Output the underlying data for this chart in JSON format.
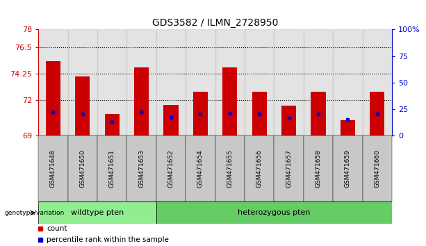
{
  "title": "GDS3582 / ILMN_2728950",
  "samples": [
    "GSM471648",
    "GSM471650",
    "GSM471651",
    "GSM471653",
    "GSM471652",
    "GSM471654",
    "GSM471655",
    "GSM471656",
    "GSM471657",
    "GSM471658",
    "GSM471659",
    "GSM471660"
  ],
  "counts": [
    75.3,
    74.0,
    70.8,
    74.8,
    71.6,
    72.7,
    74.8,
    72.7,
    71.5,
    72.7,
    70.3,
    72.7
  ],
  "percentile_ranks": [
    22,
    20,
    13,
    22,
    17,
    20,
    21,
    20,
    16,
    20,
    15,
    20
  ],
  "ymin": 69,
  "ymax": 78,
  "yticks": [
    69,
    72,
    74.25,
    76.5,
    78
  ],
  "ytick_labels": [
    "69",
    "72",
    "74.25",
    "76.5",
    "78"
  ],
  "y2min": 0,
  "y2max": 100,
  "y2ticks": [
    0,
    25,
    50,
    75,
    100
  ],
  "y2tick_labels": [
    "0",
    "25",
    "50",
    "75",
    "100%"
  ],
  "bar_color": "#cc0000",
  "dot_color": "#0000cc",
  "left_tick_color": "#cc0000",
  "right_tick_color": "#0000cc",
  "wildtype_count": 4,
  "heterozygous_count": 8,
  "wildtype_label": "wildtype pten",
  "heterozygous_label": "heterozygous pten",
  "genotype_label": "genotype/variation",
  "legend_count": "count",
  "legend_percentile": "percentile rank within the sample",
  "grid_dotted_lines": [
    72,
    74.25,
    76.5
  ],
  "bar_width": 0.5,
  "sample_col_bg": "#c8c8c8",
  "plot_bg": "#ffffff",
  "wt_color": "#90ee90",
  "ht_color": "#66cc66"
}
